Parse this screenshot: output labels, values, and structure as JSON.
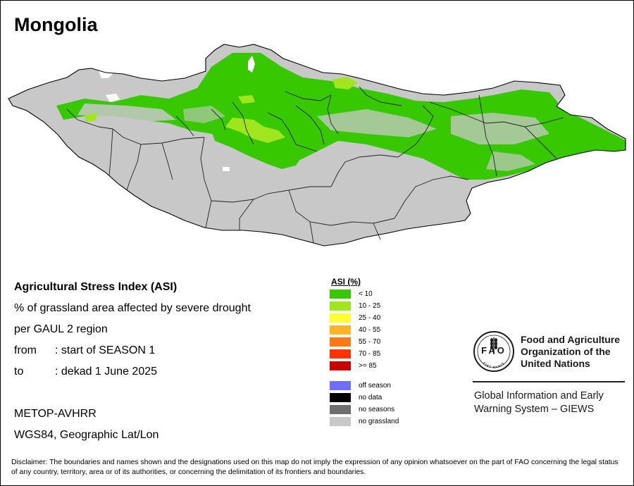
{
  "title": "Mongolia",
  "info": {
    "heading": "Agricultural Stress Index (ASI)",
    "line1": "% of grassland area affected by severe drought",
    "line2": "per GAUL 2 region",
    "from_label": "from",
    "from_value": ": start of SEASON 1",
    "to_label": "to",
    "to_value": ": dekad 1 June 2025",
    "sensor": "METOP-AVHRR",
    "projection": "WGS84, Geographic Lat/Lon"
  },
  "legend": {
    "title": "ASI (%)",
    "classes": [
      {
        "label": "< 10",
        "color": "#38c800"
      },
      {
        "label": "10 - 25",
        "color": "#a0e61e"
      },
      {
        "label": "25 - 40",
        "color": "#ffff32"
      },
      {
        "label": "40 - 55",
        "color": "#ffb428"
      },
      {
        "label": "55 - 70",
        "color": "#ff7814"
      },
      {
        "label": "70 - 85",
        "color": "#ff3200"
      },
      {
        "label": ">= 85",
        "color": "#c80000"
      }
    ],
    "other": [
      {
        "label": "off season",
        "color": "#6e6eff"
      },
      {
        "label": "no data",
        "color": "#000000"
      },
      {
        "label": "no seasons",
        "color": "#6e6e6e"
      },
      {
        "label": "no grassland",
        "color": "#c8c8c8"
      }
    ]
  },
  "logo": {
    "acronym": "FAO",
    "motto": "FIAT PANIS",
    "org_line1": "Food and Agriculture",
    "org_line2": "Organization of the",
    "org_line3": "United Nations"
  },
  "giews": {
    "line1": "Global Information and Early",
    "line2": "Warning System – GIEWS"
  },
  "disclaimer": "Disclaimer: The boundaries and names shown and the designations used on this map do not imply the expression of any opinion whatsoever on the part of FAO concerning the legal status of any country, territory, area or of its authorities, or concerning the delimitation of its frontiers and boundaries."
}
